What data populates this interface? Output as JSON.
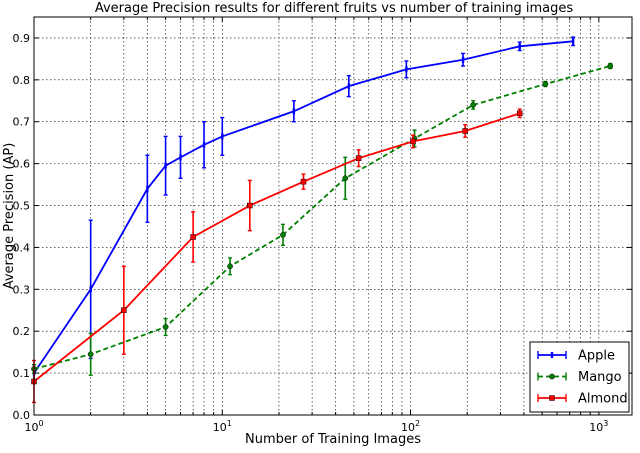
{
  "chart_data": {
    "type": "line",
    "title": "Average Precision results for different fruits vs number of training images",
    "xlabel": "Number of Training Images",
    "ylabel": "Average Precision (AP)",
    "x_scale": "log",
    "xlim": [
      1,
      1500
    ],
    "ylim": [
      0,
      0.95
    ],
    "x_ticks": [
      {
        "value": 1,
        "base": "10",
        "exp": "0"
      },
      {
        "value": 10,
        "base": "10",
        "exp": "1"
      },
      {
        "value": 100,
        "base": "10",
        "exp": "2"
      },
      {
        "value": 1000,
        "base": "10",
        "exp": "3"
      }
    ],
    "y_ticks": [
      "0.0",
      "0.1",
      "0.2",
      "0.3",
      "0.4",
      "0.5",
      "0.6",
      "0.7",
      "0.8",
      "0.9"
    ],
    "grid": true,
    "legend_position": "bottom-right",
    "series": [
      {
        "name": "Apple",
        "color": "#0000ff",
        "line_style": "solid",
        "marker": "bar",
        "x": [
          1,
          2,
          4,
          5,
          6,
          8,
          10,
          24,
          47,
          95,
          190,
          380,
          730
        ],
        "y": [
          0.1,
          0.3,
          0.54,
          0.595,
          0.615,
          0.645,
          0.665,
          0.725,
          0.785,
          0.825,
          0.848,
          0.88,
          0.892
        ],
        "err": [
          0.02,
          0.165,
          0.08,
          0.07,
          0.05,
          0.055,
          0.045,
          0.025,
          0.025,
          0.02,
          0.015,
          0.01,
          0.01
        ]
      },
      {
        "name": "Mango",
        "color": "#008000",
        "line_style": "dashed",
        "marker": "circle",
        "x": [
          1,
          2,
          5,
          11,
          21,
          45,
          105,
          215,
          520,
          1150
        ],
        "y": [
          0.11,
          0.145,
          0.21,
          0.355,
          0.43,
          0.565,
          0.66,
          0.74,
          0.79,
          0.833
        ],
        "err": [
          0.01,
          0.05,
          0.02,
          0.02,
          0.025,
          0.05,
          0.02,
          0.01,
          0.006,
          0.006
        ]
      },
      {
        "name": "Almond",
        "color": "#ff0000",
        "line_style": "solid",
        "marker": "square",
        "x": [
          1,
          3,
          7,
          14,
          27,
          53,
          103,
          195,
          380
        ],
        "y": [
          0.08,
          0.25,
          0.425,
          0.5,
          0.557,
          0.613,
          0.653,
          0.678,
          0.72
        ],
        "err": [
          0.05,
          0.105,
          0.06,
          0.06,
          0.018,
          0.02,
          0.015,
          0.015,
          0.01
        ]
      }
    ]
  }
}
